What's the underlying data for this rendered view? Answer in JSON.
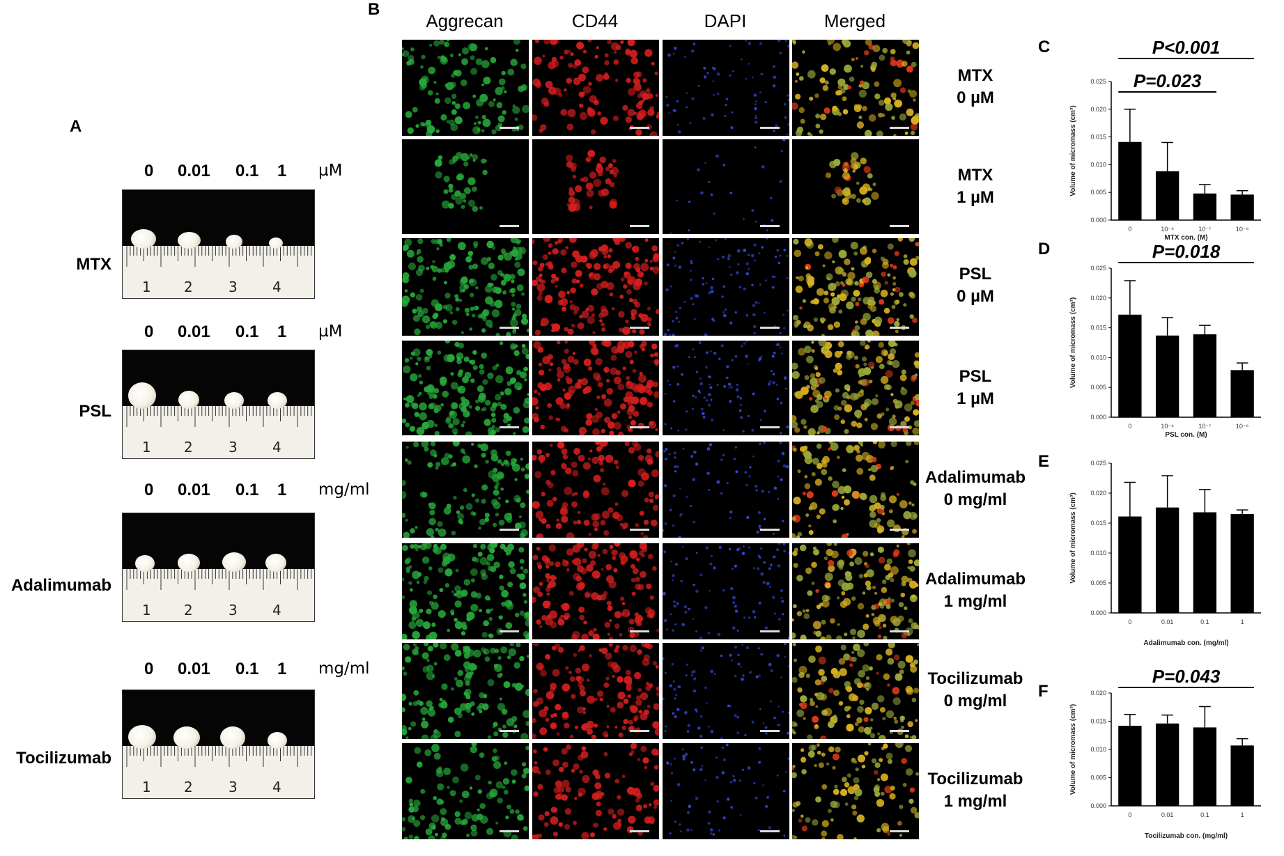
{
  "panelA": {
    "label": "A",
    "rows": [
      {
        "drug": "MTX",
        "concs": [
          "0",
          "0.01",
          "0.1",
          "1"
        ],
        "unit": "µM"
      },
      {
        "drug": "PSL",
        "concs": [
          "0",
          "0.01",
          "0.1",
          "1"
        ],
        "unit": "µM"
      },
      {
        "drug": "Adalimumab",
        "concs": [
          "0",
          "0.01",
          "0.1",
          "1"
        ],
        "unit": "mg/ml"
      },
      {
        "drug": "Tocilizumab",
        "concs": [
          "0",
          "0.01",
          "0.1",
          "1"
        ],
        "unit": "mg/ml"
      }
    ],
    "ruler_numbers": [
      "1",
      "2",
      "3",
      "4"
    ]
  },
  "panelB": {
    "label": "B",
    "columns": [
      "Aggrecan",
      "CD44",
      "DAPI",
      "Merged"
    ],
    "rows": [
      {
        "line1": "MTX",
        "line2": "0 µM"
      },
      {
        "line1": "MTX",
        "line2": "1 µM"
      },
      {
        "line1": "PSL",
        "line2": "0 µM"
      },
      {
        "line1": "PSL",
        "line2": "1 µM"
      },
      {
        "line1": "Adalimumab",
        "line2": "0 mg/ml"
      },
      {
        "line1": "Adalimumab",
        "line2": "1 mg/ml"
      },
      {
        "line1": "Tocilizumab",
        "line2": "0 mg/ml"
      },
      {
        "line1": "Tocilizumab",
        "line2": "1 mg/ml"
      }
    ]
  },
  "chart_data": [
    {
      "panel": "C",
      "type": "bar",
      "categories": [
        "0",
        "10⁻⁸",
        "10⁻⁷",
        "10⁻⁶"
      ],
      "values": [
        0.0141,
        0.0088,
        0.0048,
        0.0046
      ],
      "errors": [
        0.0059,
        0.0052,
        0.0016,
        0.0007
      ],
      "ylabel": "Volume of micromass (cm³)",
      "xlabel": "MTX con. (M)",
      "ylim": [
        0,
        0.025
      ],
      "yticks": [
        "0.000",
        "0.005",
        "0.010",
        "0.015",
        "0.020",
        "0.025"
      ],
      "annotations": [
        {
          "text": "P<0.001",
          "from": 0,
          "to": 3
        },
        {
          "text": "P=0.023",
          "from": 0,
          "to": 2
        }
      ]
    },
    {
      "panel": "D",
      "type": "bar",
      "categories": [
        "0",
        "10⁻⁸",
        "10⁻⁷",
        "10⁻⁶"
      ],
      "values": [
        0.0172,
        0.0137,
        0.0139,
        0.0079
      ],
      "errors": [
        0.0057,
        0.003,
        0.0015,
        0.0012
      ],
      "ylabel": "Volume of micromass (cm³)",
      "xlabel": "PSL con. (M)",
      "ylim": [
        0,
        0.025
      ],
      "yticks": [
        "0.000",
        "0.005",
        "0.010",
        "0.015",
        "0.020",
        "0.025"
      ],
      "annotations": [
        {
          "text": "P=0.018",
          "from": 0,
          "to": 3
        }
      ]
    },
    {
      "panel": "E",
      "type": "bar",
      "categories": [
        "0",
        "0.01",
        "0.1",
        "1"
      ],
      "values": [
        0.0161,
        0.0176,
        0.0168,
        0.0165
      ],
      "errors": [
        0.0057,
        0.0053,
        0.0038,
        0.0007
      ],
      "ylabel": "Volume of micromass (cm³)",
      "xlabel": "Adalimumab con. (mg/ml)",
      "ylim": [
        0,
        0.025
      ],
      "yticks": [
        "0.000",
        "0.005",
        "0.010",
        "0.015",
        "0.020",
        "0.025"
      ],
      "annotations": []
    },
    {
      "panel": "F",
      "type": "bar",
      "categories": [
        "0",
        "0.01",
        "0.1",
        "1"
      ],
      "values": [
        0.0142,
        0.0146,
        0.0139,
        0.0107
      ],
      "errors": [
        0.002,
        0.0015,
        0.0037,
        0.0012
      ],
      "ylabel": "Volume of micromass (cm³)",
      "xlabel": "Tocilizumab con. (mg/ml)",
      "ylim": [
        0,
        0.02
      ],
      "yticks": [
        "0.000",
        "0.005",
        "0.010",
        "0.015",
        "0.020"
      ],
      "annotations": [
        {
          "text": "P=0.043",
          "from": 0,
          "to": 3
        }
      ]
    }
  ]
}
